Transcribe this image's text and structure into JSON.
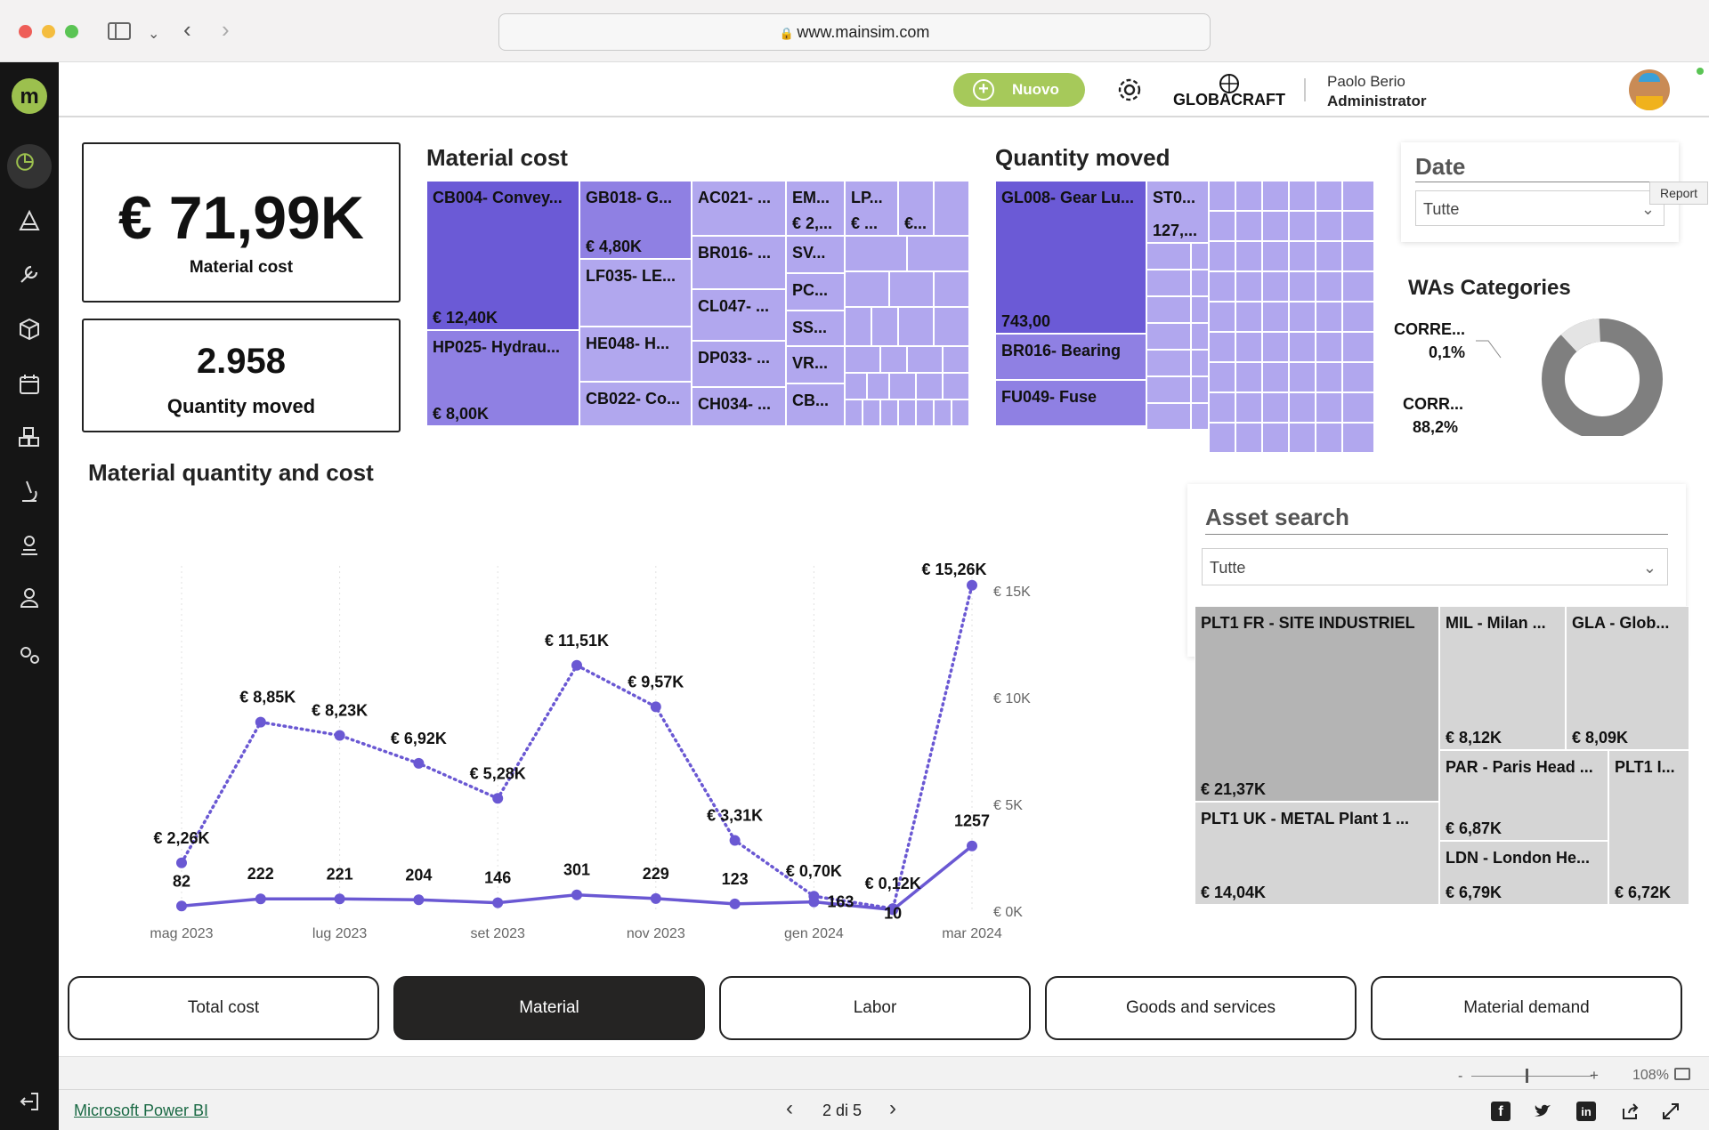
{
  "browser": {
    "url": "www.mainsim.com"
  },
  "header": {
    "new_button": "Nuovo",
    "company_logo_text": "GLOBACRAFT",
    "user_name": "Paolo Berio",
    "user_role": "Administrator"
  },
  "kpis": {
    "material_cost_value": "€ 71,99K",
    "material_cost_label": "Material cost",
    "quantity_value": "2.958",
    "quantity_label": "Quantity moved"
  },
  "material_cost_treemap": {
    "title": "Material cost",
    "cells": [
      {
        "label": "CB004- Convey...",
        "value": "€ 12,40K"
      },
      {
        "label": "HP025- Hydrau...",
        "value": "€ 8,00K"
      },
      {
        "label": "GB018- G...",
        "value": "€ 4,80K"
      },
      {
        "label": "LF035- LE...",
        "value": ""
      },
      {
        "label": "HE048- H...",
        "value": ""
      },
      {
        "label": "CB022- Co...",
        "value": ""
      },
      {
        "label": "AC021- ...",
        "value": ""
      },
      {
        "label": "BR016- ...",
        "value": ""
      },
      {
        "label": "CL047- ...",
        "value": ""
      },
      {
        "label": "DP033- ...",
        "value": ""
      },
      {
        "label": "CH034- ...",
        "value": ""
      },
      {
        "label": "EM...",
        "value": "€ 2,..."
      },
      {
        "label": "LP...",
        "value": "€ ..."
      },
      {
        "label": "",
        "value": "€..."
      },
      {
        "label": "SV...",
        "value": ""
      },
      {
        "label": "PC...",
        "value": ""
      },
      {
        "label": "SS...",
        "value": ""
      },
      {
        "label": "VR...",
        "value": ""
      },
      {
        "label": "CB...",
        "value": ""
      }
    ]
  },
  "quantity_treemap": {
    "title": "Quantity moved",
    "cells": [
      {
        "label": "GL008- Gear Lu...",
        "value": "743,00"
      },
      {
        "label": "BR016- Bearing",
        "value": ""
      },
      {
        "label": "FU049- Fuse",
        "value": ""
      },
      {
        "label": "ST0...",
        "value": "127,..."
      }
    ]
  },
  "date_slicer": {
    "title": "Date",
    "value": "Tutte",
    "tooltip": "Report"
  },
  "was_categories": {
    "title": "WAs Categories",
    "slices": [
      {
        "label": "CORRE...",
        "pct_text": "0,1%",
        "color": "#e4e4e4"
      },
      {
        "label": "CORR...",
        "pct_text": "88,2%",
        "color": "#7f7f7f"
      }
    ]
  },
  "asset_search": {
    "title": "Asset search",
    "value": "Tutte"
  },
  "asset_treemap": {
    "cells": [
      {
        "label": "PLT1 FR - SITE INDUSTRIEL",
        "value": "€ 21,37K"
      },
      {
        "label": "PLT1 UK - METAL Plant 1 ...",
        "value": "€ 14,04K"
      },
      {
        "label": "MIL - Milan ...",
        "value": "€ 8,12K"
      },
      {
        "label": "GLA - Glob...",
        "value": "€ 8,09K"
      },
      {
        "label": "PAR - Paris Head ...",
        "value": "€ 6,87K"
      },
      {
        "label": "LDN - London He...",
        "value": "€ 6,79K"
      },
      {
        "label": "PLT1 I...",
        "value": "€ 6,72K"
      }
    ]
  },
  "chart_title": "Material quantity and cost",
  "chart_data": {
    "type": "line",
    "title": "Material quantity and cost",
    "x_months": [
      "mag 2023",
      "giu 2023",
      "lug 2023",
      "ago 2023",
      "set 2023",
      "ott 2023",
      "nov 2023",
      "dic 2023",
      "gen 2024",
      "feb 2024",
      "mar 2024"
    ],
    "x_tick_labels": [
      "mag 2023",
      "lug 2023",
      "set 2023",
      "nov 2023",
      "gen 2024",
      "mar 2024"
    ],
    "y_tick_labels": [
      "€ 0K",
      "€ 5K",
      "€ 10K",
      "€ 15K"
    ],
    "y_right_range": [
      0,
      15000
    ],
    "series": [
      {
        "name": "Material cost",
        "style": "dotted",
        "color": "#6a58d3",
        "values": [
          2260,
          8850,
          8230,
          6920,
          5280,
          11510,
          9570,
          3310,
          700,
          120,
          15260
        ],
        "labels": [
          "€ 2,26K",
          "€ 8,85K",
          "€ 8,23K",
          "€ 6,92K",
          "€ 5,28K",
          "€ 11,51K",
          "€ 9,57K",
          "€ 3,31K",
          "€ 0,70K",
          "€ 0,12K",
          "€ 15,26K"
        ]
      },
      {
        "name": "Quantity moved",
        "style": "solid",
        "color": "#6a58d3",
        "values": [
          82,
          222,
          221,
          204,
          146,
          301,
          229,
          123,
          163,
          10,
          1257
        ],
        "labels": [
          "82",
          "222",
          "221",
          "204",
          "146",
          "301",
          "229",
          "123",
          "163",
          "10",
          "1257"
        ]
      }
    ]
  },
  "tabs": [
    {
      "label": "Total cost",
      "active": false
    },
    {
      "label": "Material",
      "active": true
    },
    {
      "label": "Labor",
      "active": false
    },
    {
      "label": "Goods and services",
      "active": false
    },
    {
      "label": "Material demand",
      "active": false
    }
  ],
  "footer": {
    "powerbi_link": "Microsoft Power BI",
    "page_indicator": "2 di 5",
    "zoom": "108%",
    "zoom_minus": "-",
    "zoom_plus": "+"
  }
}
